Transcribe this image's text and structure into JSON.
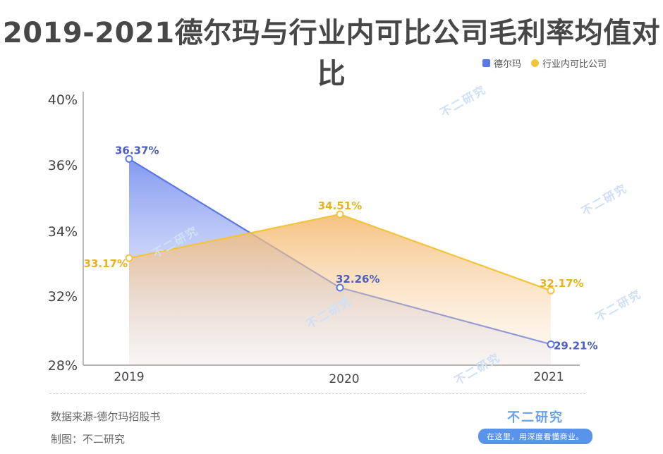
{
  "title": "2019-2021德尔玛与行业内可比公司毛利率均值对比",
  "legend": {
    "series_a": "德尔玛",
    "series_b": "行业内可比公司"
  },
  "footer": {
    "source": "数据来源-德尔玛招股书",
    "maker": "制图：不二研究",
    "brand_name": "不二研究",
    "brand_slogan": "在这里，用深度看懂商业。"
  },
  "watermark_text": "不二研究",
  "colors": {
    "series_a": "#5b78e4",
    "series_b": "#f2c43a",
    "label_a": "#4a5fbf",
    "label_b": "#e7b21e"
  },
  "chart_data": {
    "type": "area",
    "categories": [
      "2019",
      "2020",
      "2021"
    ],
    "series": [
      {
        "name": "德尔玛",
        "values": [
          36.37,
          32.26,
          29.21
        ],
        "labels": [
          "36.37%",
          "32.26%",
          "29.21%"
        ]
      },
      {
        "name": "行业内可比公司",
        "values": [
          33.17,
          34.51,
          32.17
        ],
        "labels": [
          "33.17%",
          "34.51%",
          "32.17%"
        ]
      }
    ],
    "yticks": [
      {
        "value": 40,
        "label": "40%"
      },
      {
        "value": 36,
        "label": "36%"
      },
      {
        "value": 34,
        "label": "34%"
      },
      {
        "value": 32,
        "label": "32%"
      },
      {
        "value": 28,
        "label": "28%"
      }
    ],
    "ylim": [
      28,
      40
    ],
    "legend": "top-right",
    "grid": false
  }
}
